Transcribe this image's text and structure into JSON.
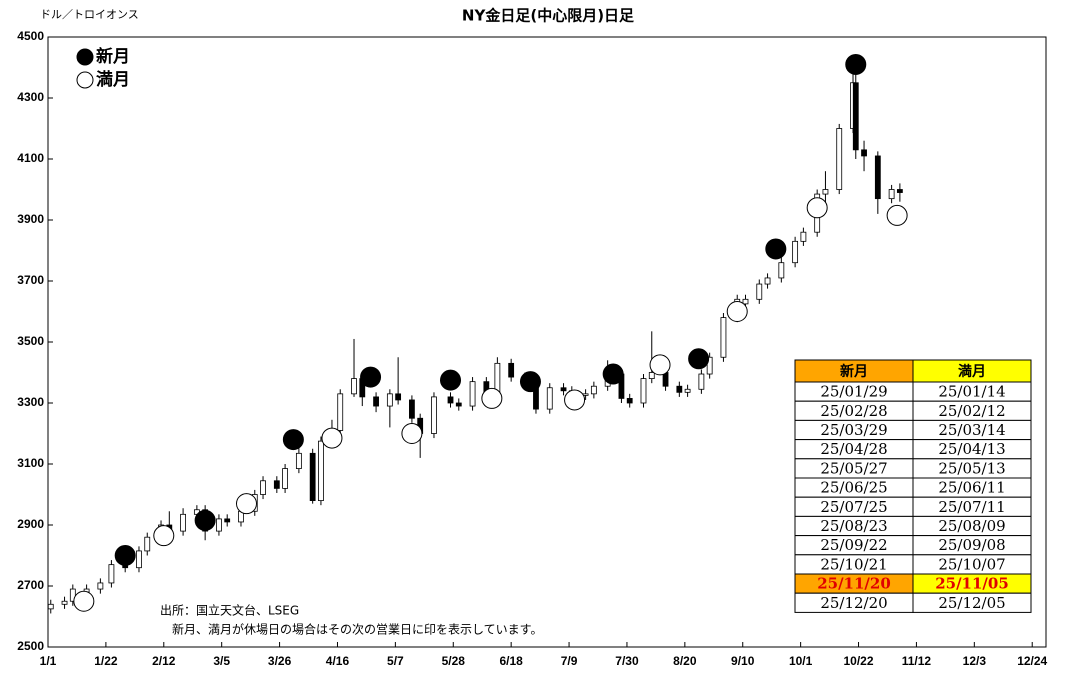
{
  "chart_data": {
    "type": "candlestick",
    "title": "NY金日足(中心限月)日足",
    "unit_label": "ドル／トロイオンス",
    "x": [
      "1/2",
      "1/7",
      "1/10",
      "1/15",
      "1/20",
      "1/24",
      "1/29",
      "2/3",
      "2/6",
      "2/11",
      "2/14",
      "2/19",
      "2/24",
      "2/27",
      "3/4",
      "3/7",
      "3/12",
      "3/17",
      "3/20",
      "3/25",
      "3/28",
      "4/2",
      "4/7",
      "4/10",
      "4/14",
      "4/17",
      "4/22",
      "4/25",
      "4/30",
      "5/5",
      "5/8",
      "5/13",
      "5/16",
      "5/21",
      "5/27",
      "5/30",
      "6/4",
      "6/9",
      "6/13",
      "6/18",
      "6/23",
      "6/27",
      "7/2",
      "7/7",
      "7/10",
      "7/15",
      "7/18",
      "7/23",
      "7/28",
      "7/31",
      "8/5",
      "8/8",
      "8/13",
      "8/18",
      "8/21",
      "8/26",
      "8/29",
      "9/3",
      "9/8",
      "9/11",
      "9/16",
      "9/19",
      "9/24",
      "9/29",
      "10/2",
      "10/7",
      "10/10",
      "10/15",
      "10/20",
      "10/21",
      "10/24",
      "10/29",
      "11/3",
      "11/6"
    ],
    "open": [
      2625,
      2640,
      2650,
      2680,
      2690,
      2710,
      2770,
      2760,
      2815,
      2860,
      2900,
      2880,
      2935,
      2950,
      2880,
      2920,
      2910,
      2945,
      3000,
      3045,
      3020,
      3085,
      3135,
      2980,
      3175,
      3210,
      3330,
      3380,
      3320,
      3290,
      3330,
      3310,
      3250,
      3200,
      3320,
      3300,
      3290,
      3370,
      3320,
      3430,
      3385,
      3370,
      3280,
      3350,
      3340,
      3325,
      3330,
      3355,
      3395,
      3315,
      3300,
      3380,
      3400,
      3355,
      3335,
      3345,
      3395,
      3450,
      3580,
      3625,
      3640,
      3690,
      3710,
      3760,
      3830,
      3860,
      3985,
      4000,
      4200,
      4350,
      4130,
      4110,
      3970,
      4000
    ],
    "high": [
      2655,
      2665,
      2705,
      2705,
      2725,
      2785,
      2785,
      2830,
      2875,
      2915,
      2945,
      2955,
      2965,
      2965,
      2935,
      2935,
      2960,
      3015,
      3060,
      3060,
      3100,
      3160,
      3150,
      3190,
      3245,
      3345,
      3510,
      3395,
      3335,
      3345,
      3450,
      3325,
      3265,
      3335,
      3335,
      3315,
      3385,
      3385,
      3450,
      3445,
      3400,
      3385,
      3365,
      3365,
      3355,
      3345,
      3370,
      3440,
      3410,
      3330,
      3395,
      3535,
      3415,
      3370,
      3360,
      3410,
      3465,
      3595,
      3655,
      3655,
      3705,
      3725,
      3790,
      3845,
      3875,
      4000,
      4060,
      4215,
      4380,
      4390,
      4160,
      4125,
      4015,
      4020
    ],
    "low": [
      2610,
      2625,
      2635,
      2665,
      2675,
      2695,
      2745,
      2745,
      2800,
      2845,
      2865,
      2865,
      2920,
      2850,
      2865,
      2895,
      2895,
      2930,
      2985,
      3005,
      3005,
      3070,
      2970,
      2965,
      3160,
      3195,
      3320,
      3290,
      3270,
      3220,
      3295,
      3235,
      3120,
      3185,
      3285,
      3275,
      3275,
      3305,
      3305,
      3370,
      3355,
      3265,
      3265,
      3325,
      3310,
      3310,
      3315,
      3340,
      3300,
      3285,
      3285,
      3365,
      3340,
      3320,
      3320,
      3330,
      3380,
      3435,
      3565,
      3610,
      3625,
      3675,
      3695,
      3745,
      3815,
      3845,
      3945,
      3985,
      4185,
      4100,
      4060,
      3920,
      3955,
      3960
    ],
    "close": [
      2640,
      2650,
      2690,
      2690,
      2710,
      2770,
      2760,
      2815,
      2860,
      2900,
      2880,
      2935,
      2950,
      2880,
      2920,
      2910,
      2945,
      3000,
      3045,
      3020,
      3085,
      3135,
      2980,
      3175,
      3210,
      3330,
      3380,
      3320,
      3290,
      3330,
      3310,
      3250,
      3200,
      3320,
      3300,
      3290,
      3370,
      3320,
      3430,
      3385,
      3370,
      3280,
      3350,
      3340,
      3325,
      3330,
      3355,
      3395,
      3315,
      3300,
      3380,
      3400,
      3355,
      3335,
      3345,
      3395,
      3450,
      3580,
      3640,
      3640,
      3690,
      3710,
      3760,
      3830,
      3860,
      3985,
      4000,
      4200,
      4350,
      4130,
      4110,
      3970,
      4000,
      3990
    ],
    "up_color": "#ffffff",
    "down_color": "#000000",
    "xlim": [
      "1/1",
      "12/29"
    ],
    "xticks": [
      "1/1",
      "1/22",
      "2/12",
      "3/5",
      "3/26",
      "4/16",
      "5/7",
      "5/28",
      "6/18",
      "7/9",
      "7/30",
      "8/20",
      "9/10",
      "10/1",
      "10/22",
      "11/12",
      "12/3",
      "12/24"
    ],
    "ylim": [
      2500,
      4500
    ],
    "yticks": [
      2500,
      2700,
      2900,
      3100,
      3300,
      3500,
      3700,
      3900,
      4100,
      4300,
      4500
    ],
    "moons": [
      {
        "name": "新月",
        "color": "#000000",
        "x": [
          "1/29",
          "2/27",
          "3/31",
          "4/28",
          "5/27",
          "6/25",
          "7/25",
          "8/25",
          "9/22",
          "10/21"
        ],
        "values": [
          2800,
          2915,
          3180,
          3385,
          3375,
          3370,
          3395,
          3445,
          3805,
          4410
        ]
      },
      {
        "name": "満月",
        "color": "#ffffff",
        "x": [
          "1/14",
          "2/12",
          "3/14",
          "4/14",
          "5/13",
          "6/11",
          "7/11",
          "8/11",
          "9/8",
          "10/7",
          "11/5"
        ],
        "values": [
          2650,
          2865,
          2970,
          3185,
          3200,
          3315,
          3310,
          3425,
          3600,
          3940,
          3915
        ]
      }
    ],
    "notes": [
      "出所：国立天文台、LSEG",
      "新月、満月が休場日の場合はその次の営業日に印を表示しています。"
    ],
    "table": {
      "header": [
        "新月",
        "満月"
      ],
      "highlight_row": 10,
      "rows": [
        [
          "25/01/29",
          "25/01/14"
        ],
        [
          "25/02/28",
          "25/02/12"
        ],
        [
          "25/03/29",
          "25/03/14"
        ],
        [
          "25/04/28",
          "25/04/13"
        ],
        [
          "25/05/27",
          "25/05/13"
        ],
        [
          "25/06/25",
          "25/06/11"
        ],
        [
          "25/07/25",
          "25/07/11"
        ],
        [
          "25/08/23",
          "25/08/09"
        ],
        [
          "25/09/22",
          "25/09/08"
        ],
        [
          "25/10/21",
          "25/10/07"
        ],
        [
          "25/11/20",
          "25/11/05"
        ],
        [
          "25/12/20",
          "25/12/05"
        ]
      ]
    }
  }
}
